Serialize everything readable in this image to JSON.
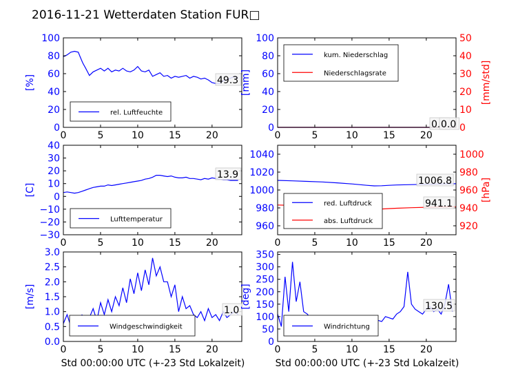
{
  "figure": {
    "title": "2016-11-21 Wetterdaten Station FUR□",
    "xlabel": "Std 00:00:00 UTC (+-23 Std Lokalzeit)"
  },
  "colors": {
    "blue": "#0000ff",
    "red": "#ff0000",
    "light_blue": "#8080ff",
    "axis": "#000000",
    "legend_border": "#000000"
  },
  "chart_data": [
    {
      "id": "humidity",
      "type": "line",
      "xlim": [
        0,
        24
      ],
      "xticks": [
        0,
        5,
        10,
        15,
        20
      ],
      "ylim": [
        0,
        100
      ],
      "yticks": [
        0,
        20,
        40,
        60,
        80,
        100
      ],
      "ylabel": "[%]",
      "ytick_color": "blue",
      "legend_placement": "lower-left",
      "series": [
        {
          "name": "rel. Luftfeuchte",
          "color": "blue",
          "x": [
            0,
            0.5,
            1,
            1.5,
            2,
            2.3,
            2.6,
            3,
            3.5,
            4,
            4.5,
            5,
            5.5,
            6,
            6.5,
            7,
            7.5,
            8,
            8.5,
            9,
            9.5,
            10,
            10.5,
            11,
            11.5,
            12,
            12.5,
            13,
            13.5,
            14,
            14.5,
            15,
            15.5,
            16,
            16.5,
            17,
            17.5,
            18,
            18.5,
            19,
            19.5,
            20,
            20.5,
            21,
            21.5,
            22,
            22.5,
            23,
            23.5
          ],
          "y": [
            79,
            81,
            84,
            85,
            84,
            78,
            72,
            66,
            58,
            62,
            64,
            66,
            63,
            66,
            62,
            64,
            63,
            66,
            63,
            62,
            64,
            68,
            63,
            62,
            64,
            57,
            59,
            61,
            57,
            58,
            55,
            57,
            56,
            57,
            58,
            55,
            57,
            56,
            54,
            55,
            53,
            50,
            49,
            49,
            52,
            53,
            55,
            57,
            55
          ]
        }
      ],
      "annotation": "49.3"
    },
    {
      "id": "precipitation",
      "type": "line",
      "xlim": [
        0,
        24
      ],
      "xticks": [
        0,
        5,
        10,
        15,
        20
      ],
      "ylim": [
        0,
        100
      ],
      "yticks": [
        0,
        20,
        40,
        60,
        80,
        100
      ],
      "ylabel": "[mm]",
      "ytick_color": "blue",
      "y2lim": [
        0,
        50
      ],
      "y2ticks": [
        0,
        10,
        20,
        30,
        40,
        50
      ],
      "y2label": "[mm/std]",
      "y2tick_color": "red",
      "legend_placement": "upper-left",
      "series": [
        {
          "name": "kum. Niederschlag",
          "color": "blue",
          "axis": "left",
          "x": [
            0,
            24
          ],
          "y": [
            0,
            0
          ]
        },
        {
          "name": "Niederschlagsrate",
          "color": "red",
          "axis": "right",
          "x": [
            0,
            24
          ],
          "y": [
            0,
            0
          ]
        }
      ],
      "annotations": [
        "0.0",
        "0.0"
      ]
    },
    {
      "id": "temperature",
      "type": "line",
      "xlim": [
        0,
        24
      ],
      "xticks": [
        0,
        5,
        10,
        15,
        20
      ],
      "ylim": [
        -30,
        40
      ],
      "yticks": [
        -30,
        -20,
        -10,
        0,
        10,
        20,
        30,
        40
      ],
      "ylabel": "[C]",
      "ytick_color": "blue",
      "legend_placement": "lower-left",
      "series": [
        {
          "name": "Lufttemperatur",
          "color": "blue",
          "x": [
            0,
            0.5,
            1,
            1.5,
            2,
            2.5,
            3,
            3.5,
            4,
            4.5,
            5,
            5.5,
            6,
            6.5,
            7,
            7.5,
            8,
            8.5,
            9,
            9.5,
            10,
            10.5,
            11,
            11.5,
            12,
            12.5,
            13,
            13.5,
            14,
            14.5,
            15,
            15.5,
            16,
            16.5,
            17,
            17.5,
            18,
            18.5,
            19,
            19.5,
            20,
            20.5,
            21,
            21.5,
            22,
            22.5,
            23,
            23.5
          ],
          "y": [
            3,
            3.5,
            3,
            2.5,
            3,
            4,
            5,
            6,
            7,
            7.5,
            8,
            8,
            9,
            8.5,
            9,
            9.5,
            10,
            10.5,
            11,
            11.5,
            12,
            12.5,
            13.5,
            14,
            15,
            16.5,
            16.5,
            16,
            15.5,
            16,
            15,
            14.5,
            14.5,
            15,
            14,
            14,
            13.5,
            13,
            14,
            13.5,
            14.5,
            14,
            13.5,
            13,
            13,
            12.5,
            12.5,
            12.5
          ]
        }
      ],
      "annotation": "13.9"
    },
    {
      "id": "pressure",
      "type": "line",
      "xlim": [
        0,
        24
      ],
      "xticks": [
        0,
        5,
        10,
        15,
        20
      ],
      "ylim": [
        950,
        1050
      ],
      "yticks": [
        960,
        980,
        1000,
        1020,
        1040
      ],
      "ylabel": "",
      "ytick_color": "blue",
      "y2lim": [
        910,
        1010
      ],
      "y2ticks": [
        920,
        940,
        960,
        980,
        1000
      ],
      "y2label": "[hPa]",
      "y2tick_color": "red",
      "legend_placement": "lower-left",
      "series": [
        {
          "name": "red. Luftdruck",
          "color": "blue",
          "axis": "left",
          "x": [
            0,
            2,
            4,
            6,
            8,
            10,
            11,
            12,
            13,
            14,
            15,
            16,
            18,
            20,
            22,
            24
          ],
          "y": [
            1010.8,
            1010.2,
            1009.6,
            1009,
            1008,
            1006.8,
            1006,
            1005.2,
            1004.6,
            1004.8,
            1005.2,
            1005.6,
            1006,
            1006.4,
            1006.8,
            1007
          ]
        },
        {
          "name": "abs. Luftdruck",
          "color": "red",
          "axis": "right",
          "x": [
            0,
            2,
            4,
            6,
            8,
            10,
            11,
            12,
            13,
            14,
            15,
            16,
            18,
            20,
            22,
            24
          ],
          "y": [
            943.2,
            942.8,
            942.2,
            941.6,
            940.8,
            939.8,
            939.3,
            938.9,
            938.6,
            938.8,
            939.2,
            939.6,
            940.2,
            940.7,
            941.1,
            941.3
          ]
        }
      ],
      "annotations": [
        "1006.8",
        "941.1"
      ]
    },
    {
      "id": "wind_speed",
      "type": "line",
      "xlim": [
        0,
        24
      ],
      "xticks": [
        0,
        5,
        10,
        15,
        20
      ],
      "ylim": [
        0,
        3
      ],
      "yticks": [
        0.0,
        0.5,
        1.0,
        1.5,
        2.0,
        2.5,
        3.0
      ],
      "ylabel": "[m/s]",
      "ytick_color": "blue",
      "legend_placement": "lower-center",
      "series": [
        {
          "name": "Windgeschwindigkeit",
          "color": "blue",
          "x": [
            0,
            0.5,
            1,
            1.5,
            2,
            2.5,
            3,
            3.5,
            4,
            4.5,
            5,
            5.5,
            6,
            6.5,
            7,
            7.5,
            8,
            8.5,
            9,
            9.5,
            10,
            10.5,
            11,
            11.5,
            12,
            12.5,
            13,
            13.5,
            14,
            14.5,
            15,
            15.5,
            16,
            16.5,
            17,
            17.5,
            18,
            18.5,
            19,
            19.5,
            20,
            20.5,
            21,
            21.5,
            22,
            22.5,
            23,
            23.5
          ],
          "y": [
            0.6,
            0.9,
            0.5,
            0.3,
            0.2,
            0.9,
            0.5,
            0.8,
            1.1,
            0.7,
            1.3,
            0.9,
            1.4,
            1.0,
            1.5,
            1.2,
            1.8,
            1.3,
            2.1,
            1.6,
            2.3,
            1.7,
            2.4,
            1.9,
            2.8,
            2.2,
            2.5,
            2.0,
            2.0,
            1.5,
            1.9,
            1.0,
            1.5,
            1.1,
            1.2,
            0.9,
            0.8,
            1.0,
            0.7,
            1.1,
            0.8,
            0.9,
            0.7,
            1.0,
            0.8,
            0.9,
            1.0,
            0.9
          ]
        }
      ],
      "annotation": "1.0"
    },
    {
      "id": "wind_direction",
      "type": "line",
      "xlim": [
        0,
        24
      ],
      "xticks": [
        0,
        5,
        10,
        15,
        20
      ],
      "ylim": [
        0,
        360
      ],
      "yticks": [
        0,
        50,
        100,
        150,
        200,
        250,
        300,
        350
      ],
      "ylabel": "[deg]",
      "ytick_color": "blue",
      "legend_placement": "lower-center",
      "series": [
        {
          "name": "Windrichtung",
          "color": "blue",
          "x": [
            0,
            0.5,
            1,
            1.5,
            2,
            2.5,
            3,
            3.5,
            4,
            4.5,
            5,
            5.5,
            6,
            6.5,
            7,
            7.5,
            8,
            8.5,
            9,
            9.5,
            10,
            10.5,
            11,
            11.5,
            12,
            12.5,
            13,
            13.5,
            14,
            14.5,
            15,
            15.5,
            16,
            16.5,
            17,
            17.5,
            18,
            18.5,
            19,
            19.5,
            20,
            20.5,
            21,
            21.5,
            22,
            22.5,
            23,
            23.5
          ],
          "y": [
            110,
            60,
            260,
            120,
            320,
            160,
            240,
            120,
            110,
            90,
            100,
            85,
            95,
            80,
            100,
            90,
            95,
            85,
            100,
            90,
            95,
            85,
            100,
            90,
            80,
            95,
            90,
            85,
            80,
            100,
            95,
            90,
            110,
            120,
            140,
            280,
            150,
            130,
            120,
            110,
            130,
            140,
            120,
            130,
            110,
            150,
            230,
            120
          ]
        }
      ],
      "annotation": "130.5"
    }
  ]
}
